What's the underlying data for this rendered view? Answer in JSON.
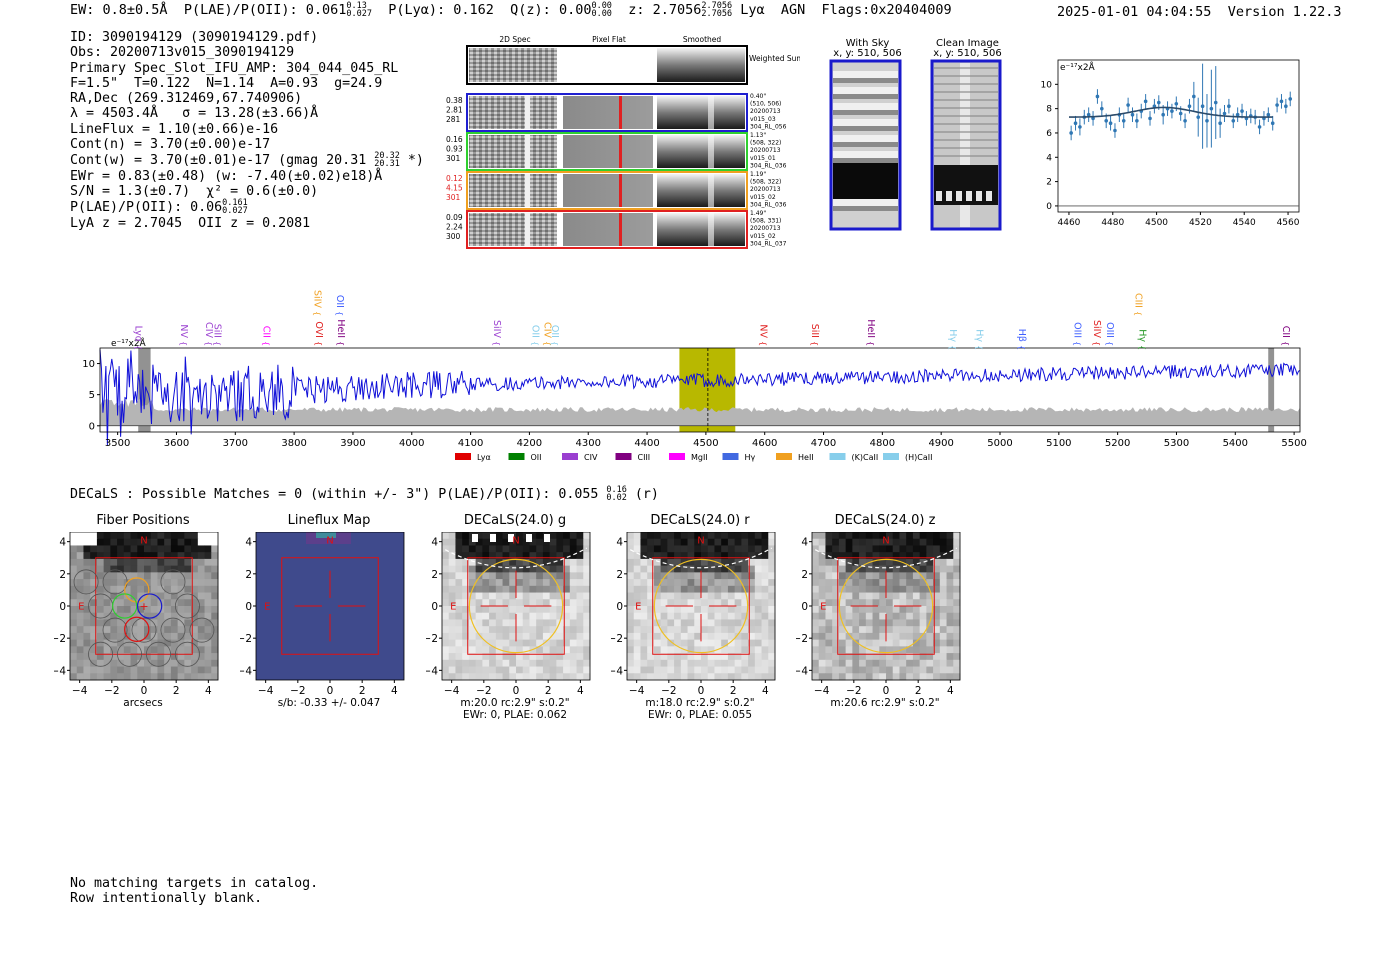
{
  "header": {
    "ew": "EW: 0.8±0.5Å",
    "plae_label": "P(LAE)/P(OII): 0.061",
    "plae_hi": "0.13",
    "plae_lo": "0.027",
    "plya": "P(Lyα): 0.162",
    "qz_label": "Q(z): 0.00",
    "qz_hi": "0.00",
    "qz_lo": "0.00",
    "z_label": "z: 2.7056",
    "z_hi": "2.7056",
    "z_lo": "2.7056",
    "line": "Lyα",
    "agn": "AGN",
    "flags": "Flags:0x20404009",
    "datetime": "2025-01-01 04:04:55",
    "version": "Version 1.22.3"
  },
  "info": {
    "id": "ID: 3090194129 (3090194129.pdf)",
    "obs": "Obs: 20200713v015_3090194129",
    "primary": "Primary Spec_Slot_IFU_AMP: 304_044_045_RL",
    "fiber": "F=1.5\"  T=0.122  N=1.14  A=0.93  g=24.9",
    "radec": "RA,Dec (269.312469,67.740906)",
    "lambda": "λ = 4503.4Å   σ = 13.28(±3.66)Å",
    "lineflux": "LineFlux = 1.10(±0.66)e-16",
    "contn": "Cont(n) = 3.70(±0.00)e-17",
    "contw": "Cont(w) = 3.70(±0.01)e-17 (gmag 20.31",
    "contw_hi": "20.32",
    "contw_lo": "20.31",
    "contw_tail": "*)",
    "ewr": "EWr = 0.83(±0.48) (w: -7.40(±0.02)e18)Å",
    "sn": "S/N = 1.3(±0.7)  χ² = 0.6(±0.0)",
    "plae2": "P(LAE)/P(OII): 0.06",
    "plae2_hi": "0.161",
    "plae2_lo": "0.027",
    "lya_z": "LyA z = 2.7045  OII z = 0.2081"
  },
  "stamps": {
    "col_titles": [
      "2D Spec",
      "Pixel Flat",
      "Smoothed"
    ],
    "weighted_sum": "Weighted Sum",
    "rows": [
      {
        "l1": "0.38",
        "l2": "2.81",
        "l3": "281",
        "lcolor": "#000000",
        "r": "0.40\"\n(510, 506)\n20200713\nv015_03\n304_RL_056",
        "color": "#1f1fd0"
      },
      {
        "l1": "0.16",
        "l2": "0.93",
        "l3": "301",
        "lcolor": "#000000",
        "r": "1.13\"\n(508, 322)\n20200713\nv015_01\n304_RL_036",
        "color": "#2fd02f"
      },
      {
        "l1": "0.12",
        "l2": "4.15",
        "l3": "301",
        "lcolor": "#e02020",
        "r": "1.19\"\n(508, 322)\n20200713\nv015_02\n304_RL_036",
        "color": "#f0a020"
      },
      {
        "l1": "0.09",
        "l2": "2.24",
        "l3": "300",
        "lcolor": "#000000",
        "r": "1.49\"\n(508, 331)\n20200713\nv015_02\n304_RL_037",
        "color": "#e02020"
      }
    ]
  },
  "skypanels": {
    "with_sky": "With Sky",
    "with_sky_xy": "x, y: 510, 506",
    "clean": "Clean Image",
    "clean_xy": "x, y: 510, 506"
  },
  "zoom_chart": {
    "type": "scatter",
    "ylabel": "e⁻¹⁷x2Å",
    "xlim": [
      4455,
      4565
    ],
    "ylim": [
      -0.5,
      12
    ],
    "xticks": [
      4460,
      4480,
      4500,
      4520,
      4540,
      4560
    ],
    "yticks": [
      0,
      2,
      4,
      6,
      8,
      10
    ],
    "x": [
      4461,
      4463,
      4465,
      4467,
      4469,
      4471,
      4473,
      4475,
      4477,
      4479,
      4481,
      4483,
      4485,
      4487,
      4489,
      4491,
      4493,
      4495,
      4497,
      4499,
      4501,
      4503,
      4505,
      4507,
      4509,
      4511,
      4513,
      4515,
      4517,
      4519,
      4521,
      4523,
      4525,
      4527,
      4529,
      4531,
      4533,
      4535,
      4537,
      4539,
      4541,
      4543,
      4545,
      4547,
      4549,
      4551,
      4553,
      4555,
      4557,
      4559,
      4561
    ],
    "y": [
      6.0,
      6.8,
      6.5,
      7.3,
      7.5,
      7.2,
      9.0,
      8.0,
      7.0,
      6.8,
      6.2,
      7.5,
      7.0,
      8.3,
      7.5,
      7.0,
      7.8,
      8.6,
      7.2,
      8.2,
      8.5,
      7.5,
      8.0,
      7.8,
      8.4,
      7.6,
      7.0,
      8.2,
      9.0,
      7.3,
      8.2,
      7.0,
      8.0,
      8.5,
      6.8,
      7.6,
      8.2,
      7.0,
      7.5,
      7.8,
      7.2,
      7.4,
      7.3,
      6.5,
      7.2,
      7.5,
      6.8,
      8.3,
      8.6,
      8.2,
      8.8
    ],
    "err": [
      0.6,
      0.6,
      0.7,
      0.6,
      0.6,
      0.6,
      0.6,
      0.6,
      0.6,
      0.6,
      0.6,
      0.6,
      0.6,
      0.6,
      0.6,
      0.6,
      0.6,
      0.6,
      0.6,
      0.6,
      0.6,
      0.8,
      0.6,
      0.6,
      0.6,
      0.6,
      0.6,
      0.6,
      1.2,
      1.6,
      3.5,
      2.2,
      3.2,
      3.0,
      1.2,
      0.7,
      0.6,
      0.6,
      0.6,
      0.6,
      0.6,
      0.6,
      0.6,
      0.6,
      0.6,
      0.6,
      0.6,
      0.6,
      0.6,
      0.6,
      0.6
    ],
    "fit": {
      "baseline": 7.3,
      "amp": 0.8,
      "mu": 4503.4,
      "sigma": 13.28
    }
  },
  "full_chart": {
    "type": "line",
    "ylabel": "e⁻¹⁷x2Å",
    "xlim": [
      3470,
      5510
    ],
    "ylim": [
      -1,
      12.5
    ],
    "xticks": [
      3500,
      3600,
      3700,
      3800,
      3900,
      4000,
      4100,
      4200,
      4300,
      4400,
      4500,
      4600,
      4700,
      4800,
      4900,
      5000,
      5100,
      5200,
      5300,
      5400,
      5500
    ],
    "yticks": [
      0,
      5,
      10
    ],
    "highlight": [
      4455,
      4550
    ],
    "marker": 4503.4,
    "gray_bands": [
      [
        3535,
        3556
      ],
      [
        5456,
        5466
      ]
    ],
    "lines": [
      {
        "label": "Lyα",
        "x": 3530,
        "color": "#9a3fd0",
        "row": 2
      },
      {
        "label": "NV",
        "x": 3608,
        "color": "#9a3fd0",
        "row": 1
      },
      {
        "label": "CIV",
        "x": 3650,
        "color": "#9a3fd0",
        "row": 1
      },
      {
        "label": "SiII",
        "x": 3665,
        "color": "#9a3fd0",
        "row": 1
      },
      {
        "label": "CII",
        "x": 3748,
        "color": "#ff00ff",
        "row": 1
      },
      {
        "label": "SiIV",
        "x": 3835,
        "color": "#f0a020",
        "row": 0
      },
      {
        "label": "OVI",
        "x": 3837,
        "color": "#e02020",
        "row": 1
      },
      {
        "label": "OII",
        "x": 3873,
        "color": "#4060ff",
        "row": 0
      },
      {
        "label": "HeII",
        "x": 3875,
        "color": "#800080",
        "row": 1
      },
      {
        "label": "SiIV",
        "x": 4140,
        "color": "#9a3fd0",
        "row": 1
      },
      {
        "label": "OII",
        "x": 4205,
        "color": "#87ceeb",
        "row": 1
      },
      {
        "label": "CIV",
        "x": 4226,
        "color": "#f0a020",
        "row": 1
      },
      {
        "label": "OII",
        "x": 4238,
        "color": "#87ceeb",
        "row": 1
      },
      {
        "label": "NV",
        "x": 4593,
        "color": "#e02020",
        "row": 1
      },
      {
        "label": "SiII",
        "x": 4680,
        "color": "#e02020",
        "row": 1
      },
      {
        "label": "HeII",
        "x": 4776,
        "color": "#800080",
        "row": 1
      },
      {
        "label": "Hγ",
        "x": 4915,
        "color": "#87ceeb",
        "row": 2
      },
      {
        "label": "Hγ",
        "x": 4960,
        "color": "#87ceeb",
        "row": 2
      },
      {
        "label": "Hβ",
        "x": 5032,
        "color": "#4060ff",
        "row": 2
      },
      {
        "label": "OIII",
        "x": 5127,
        "color": "#4060ff",
        "row": 1
      },
      {
        "label": "SiIV",
        "x": 5160,
        "color": "#e02020",
        "row": 1
      },
      {
        "label": "OIII",
        "x": 5182,
        "color": "#4060ff",
        "row": 1
      },
      {
        "label": "CIII",
        "x": 5230,
        "color": "#f0a020",
        "row": 0
      },
      {
        "label": "Hγ",
        "x": 5237,
        "color": "#2a9a2a",
        "row": 2
      },
      {
        "label": "CII",
        "x": 5481,
        "color": "#800080",
        "row": 1
      }
    ],
    "legend": [
      {
        "label": "Lyα",
        "color": "#e00000"
      },
      {
        "label": "OII",
        "color": "#008000"
      },
      {
        "label": "CIV",
        "color": "#9a3fd0"
      },
      {
        "label": "CIII",
        "color": "#800080"
      },
      {
        "label": "MgII",
        "color": "#ff00ff"
      },
      {
        "label": "Hγ",
        "color": "#4169e1"
      },
      {
        "label": "HeII",
        "color": "#f0a020"
      },
      {
        "label": "(K)CaII",
        "color": "#87ceeb"
      },
      {
        "label": "(H)CaII",
        "color": "#87ceeb"
      }
    ]
  },
  "decals_header": {
    "text": "DECaLS : Possible Matches = 0 (within +/- 3\")  P(LAE)/P(OII): 0.055",
    "hi": "0.16",
    "lo": "0.02",
    "tail": "(r)"
  },
  "cutouts": [
    {
      "title": "Fiber Positions",
      "cap1": "arcsecs",
      "cap2": ""
    },
    {
      "title": "Lineflux Map",
      "cap1": "s/b: -0.33 +/- 0.047",
      "cap2": ""
    },
    {
      "title": "DECaLS(24.0) g",
      "cap1": "m:20.0 rc:2.9\"  s:0.2\"",
      "cap2": "EWr: 0, PLAE: 0.062"
    },
    {
      "title": "DECaLS(24.0) r",
      "cap1": "m:18.0 rc:2.9\"  s:0.2\"",
      "cap2": "EWr: 0, PLAE: 0.055"
    },
    {
      "title": "DECaLS(24.0) z",
      "cap1": "m:20.6 rc:2.9\"  s:0.2\"",
      "cap2": ""
    }
  ],
  "cutout_axes": {
    "ticks": [
      -4,
      -2,
      0,
      2,
      4
    ],
    "north": "N",
    "east": "E"
  },
  "footer": {
    "line1": "No matching targets in catalog.",
    "line2": "Row intentionally blank."
  }
}
